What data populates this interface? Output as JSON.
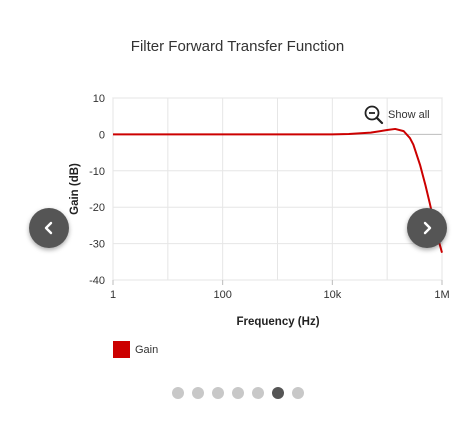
{
  "chart_data": {
    "type": "line",
    "title": "Filter Forward Transfer Function",
    "xlabel": "Frequency (Hz)",
    "ylabel": "Gain (dB)",
    "xscale": "log",
    "xlim": [
      1,
      1000000
    ],
    "ylim": [
      -40,
      10
    ],
    "x_ticks": [
      "1",
      "100",
      "10k",
      "1M"
    ],
    "y_ticks": [
      "10",
      "0",
      "-10",
      "-20",
      "-30",
      "-40"
    ],
    "grid": true,
    "legend": "bottom-left",
    "series": [
      {
        "name": "Gain",
        "color": "#cc0000",
        "x": [
          1,
          10,
          100,
          1000,
          10000,
          20000,
          50000,
          100000,
          140000,
          200000,
          260000,
          300000,
          400000,
          500000,
          600000,
          700000,
          800000,
          900000,
          1000000
        ],
        "y": [
          0,
          0,
          0,
          0,
          0,
          0.1,
          0.5,
          1.2,
          1.5,
          0.9,
          -1.0,
          -2.8,
          -8.5,
          -14,
          -19,
          -23.5,
          -27,
          -30,
          -32.5
        ]
      }
    ]
  },
  "controls": {
    "show_all_label": "Show all",
    "show_all_icon": "zoom-out-icon",
    "prev_icon": "chevron-left-icon",
    "next_icon": "chevron-right-icon",
    "pagination": {
      "count": 7,
      "active_index": 5
    }
  }
}
